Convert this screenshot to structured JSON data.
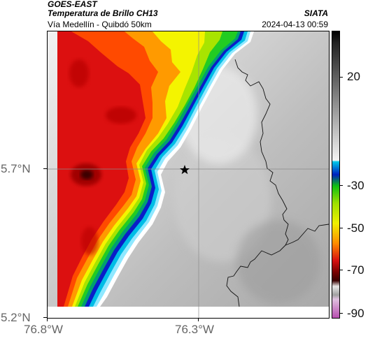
{
  "header": {
    "satellite": "GOES-EAST",
    "product": "Temperatura de Brillo CH13",
    "location": "Vía Medellín - Quibdó 50km",
    "source": "SIATA",
    "datetime": "2024-04-13 00:59"
  },
  "axes": {
    "y_ticks": [
      "5.7°N",
      "5.2°N"
    ],
    "x_ticks": [
      "76.8°W",
      "76.3°W"
    ]
  },
  "colorbar": {
    "ticks": [
      "20",
      "-30",
      "-50",
      "-70",
      "-90"
    ],
    "colors": {
      "magenta": "#b84fb0",
      "dark_red": "#3a0000",
      "red": "#d81010",
      "orange": "#ff8c00",
      "yellow": "#f0f000",
      "green": "#10c010",
      "blue": "#0020c0",
      "cyan": "#00c8e8",
      "light_gray": "#f4f4f4",
      "dark_gray": "#202020"
    }
  },
  "marker": {
    "icon": "star-icon"
  }
}
